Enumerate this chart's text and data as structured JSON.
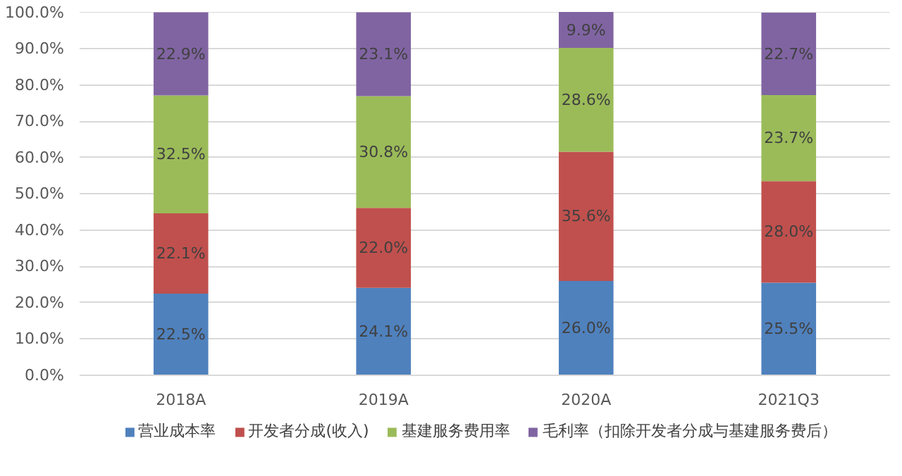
{
  "chart_data": {
    "type": "bar",
    "stacked": true,
    "categories": [
      "2018A",
      "2019A",
      "2020A",
      "2021Q3"
    ],
    "series": [
      {
        "name": "营业成本率",
        "color": "#4f81bd",
        "values": [
          22.5,
          24.1,
          26.0,
          25.5
        ],
        "value_labels": [
          "22.5%",
          "24.1%",
          "26.0%",
          "25.5%"
        ]
      },
      {
        "name": "开发者分成(收入)",
        "color": "#c0504d",
        "values": [
          22.1,
          22.0,
          35.6,
          28.0
        ],
        "value_labels": [
          "22.1%",
          "22.0%",
          "35.6%",
          "28.0%"
        ]
      },
      {
        "name": "基建服务费用率",
        "color": "#9bbb59",
        "values": [
          32.5,
          30.8,
          28.6,
          23.7
        ],
        "value_labels": [
          "32.5%",
          "30.8%",
          "28.6%",
          "23.7%"
        ]
      },
      {
        "name": "毛利率（扣除开发者分成与基建服务费后）",
        "color": "#8064a2",
        "values": [
          22.9,
          23.1,
          9.9,
          22.7
        ],
        "value_labels": [
          "22.9%",
          "23.1%",
          "9.9%",
          "22.7%"
        ]
      }
    ],
    "ylim": [
      0,
      100.1
    ],
    "yticks": [
      {
        "value": 0,
        "label": "0.0%"
      },
      {
        "value": 10,
        "label": "10.0%"
      },
      {
        "value": 20,
        "label": "20.0%"
      },
      {
        "value": 30,
        "label": "30.0%"
      },
      {
        "value": 40,
        "label": "40.0%"
      },
      {
        "value": 50,
        "label": "50.0%"
      },
      {
        "value": 60,
        "label": "60.0%"
      },
      {
        "value": 70,
        "label": "70.0%"
      },
      {
        "value": 80,
        "label": "80.0%"
      },
      {
        "value": 90,
        "label": "90.0%"
      },
      {
        "value": 100,
        "label": "100.0%"
      }
    ],
    "grid": "y",
    "legend": "bottom"
  }
}
